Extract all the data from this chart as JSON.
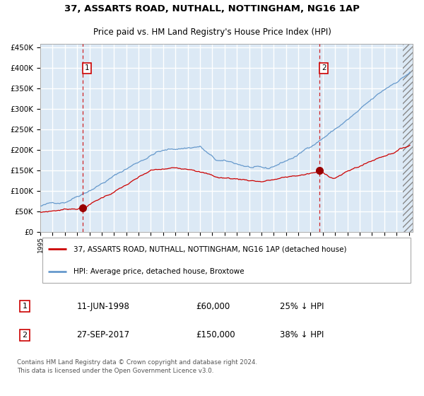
{
  "title1": "37, ASSARTS ROAD, NUTHALL, NOTTINGHAM, NG16 1AP",
  "title2": "Price paid vs. HM Land Registry's House Price Index (HPI)",
  "red_label": "37, ASSARTS ROAD, NUTHALL, NOTTINGHAM, NG16 1AP (detached house)",
  "blue_label": "HPI: Average price, detached house, Broxtowe",
  "t1_date": "11-JUN-1998",
  "t1_price": "£60,000",
  "t1_pct": "25% ↓ HPI",
  "t2_date": "27-SEP-2017",
  "t2_price": "£150,000",
  "t2_pct": "38% ↓ HPI",
  "footer": "Contains HM Land Registry data © Crown copyright and database right 2024.\nThis data is licensed under the Open Government Licence v3.0.",
  "ylim": [
    0,
    460000
  ],
  "xlim": [
    1995,
    2025.3
  ],
  "background_color": "#dce9f5",
  "grid_color": "#ffffff",
  "red_color": "#cc0000",
  "blue_color": "#6699cc",
  "date1_num": 1998.44,
  "date2_num": 2017.74,
  "hatch_start": 2024.5
}
